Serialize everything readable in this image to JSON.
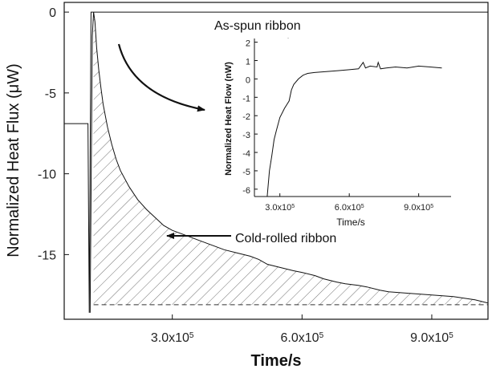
{
  "chart_data": [
    {
      "type": "line",
      "role": "main",
      "xlabel": "Time/s",
      "ylabel": "Normalized Heat Flux (μW)",
      "xlim": [
        50000,
        1030000
      ],
      "ylim": [
        -19,
        0.6
      ],
      "x_ticks": [
        300000,
        600000,
        900000
      ],
      "x_tick_labels": [
        {
          "base": "3.0x10",
          "exp": "5"
        },
        {
          "base": "6.0x10",
          "exp": "5"
        },
        {
          "base": "9.0x10",
          "exp": "5"
        }
      ],
      "y_ticks": [
        0,
        -5,
        -10,
        -15
      ],
      "y_tick_labels": [
        "0",
        "-5",
        "-10",
        "-15"
      ],
      "baseline": -18.1,
      "series": [
        {
          "role": "as-spun",
          "x": [
            50000,
            105000,
            108000,
            112000,
            118000,
            1030000
          ],
          "y": [
            -6.9,
            -6.9,
            -18.6,
            0,
            0,
            0
          ]
        },
        {
          "role": "cold-rolled",
          "x": [
            110000,
            115000,
            118000,
            121000,
            125000,
            130000,
            135000,
            140000,
            150000,
            160000,
            170000,
            180000,
            200000,
            220000,
            240000,
            260000,
            280000,
            300000,
            320000,
            340000,
            360000,
            380000,
            400000,
            420000,
            450000,
            480000,
            500000,
            520000,
            550000,
            580000,
            600000,
            630000,
            650000,
            680000,
            700000,
            730000,
            750000,
            780000,
            800000,
            850000,
            900000,
            950000,
            1000000,
            1030000
          ],
          "y": [
            -18.6,
            -1.5,
            0,
            -0.6,
            -2.2,
            -3.6,
            -4.7,
            -5.7,
            -7.1,
            -8.2,
            -9.1,
            -9.8,
            -10.8,
            -11.6,
            -12.2,
            -12.7,
            -13.2,
            -13.5,
            -13.7,
            -13.9,
            -14.1,
            -14.3,
            -14.5,
            -14.7,
            -14.9,
            -15.1,
            -15.3,
            -15.6,
            -15.8,
            -16.0,
            -16.1,
            -16.3,
            -16.5,
            -16.7,
            -16.8,
            -16.9,
            -17.0,
            -17.2,
            -17.3,
            -17.4,
            -17.5,
            -17.6,
            -17.8,
            -18.0
          ]
        }
      ],
      "annotations": [
        {
          "text": "As-spun ribbon"
        },
        {
          "text": "Cold-rolled ribbon"
        }
      ]
    },
    {
      "type": "line",
      "role": "inset",
      "xlabel": "Time/s",
      "ylabel": "Normalized Heat Flow (nW)",
      "xlim": [
        190000,
        1040000
      ],
      "ylim": [
        -6.4,
        2.2
      ],
      "x_ticks": [
        300000,
        600000,
        900000
      ],
      "x_tick_labels": [
        {
          "base": "3.0x10",
          "exp": "5"
        },
        {
          "base": "6.0x10",
          "exp": "5"
        },
        {
          "base": "9.0x10",
          "exp": "5"
        }
      ],
      "y_ticks": [
        2,
        1,
        0,
        -1,
        -2,
        -3,
        -4,
        -5,
        -6
      ],
      "y_tick_labels": [
        "2",
        "1",
        "0",
        "-1",
        "-2",
        "-3",
        "-4",
        "-5",
        "-6"
      ],
      "series": [
        {
          "role": "difference",
          "x": [
            245000,
            255000,
            265000,
            275000,
            285000,
            300000,
            320000,
            340000,
            350000,
            360000,
            380000,
            400000,
            420000,
            450000,
            500000,
            550000,
            600000,
            640000,
            660000,
            670000,
            690000,
            720000,
            725000,
            735000,
            760000,
            800000,
            850000,
            900000,
            950000,
            1000000
          ],
          "y": [
            -6.4,
            -5.0,
            -4.2,
            -3.3,
            -2.8,
            -2.1,
            -1.6,
            -1.2,
            -0.6,
            -0.3,
            0.0,
            0.2,
            0.3,
            0.35,
            0.4,
            0.45,
            0.5,
            0.55,
            0.9,
            0.6,
            0.7,
            0.65,
            0.9,
            0.55,
            0.6,
            0.65,
            0.6,
            0.7,
            0.65,
            0.6
          ]
        }
      ]
    }
  ]
}
